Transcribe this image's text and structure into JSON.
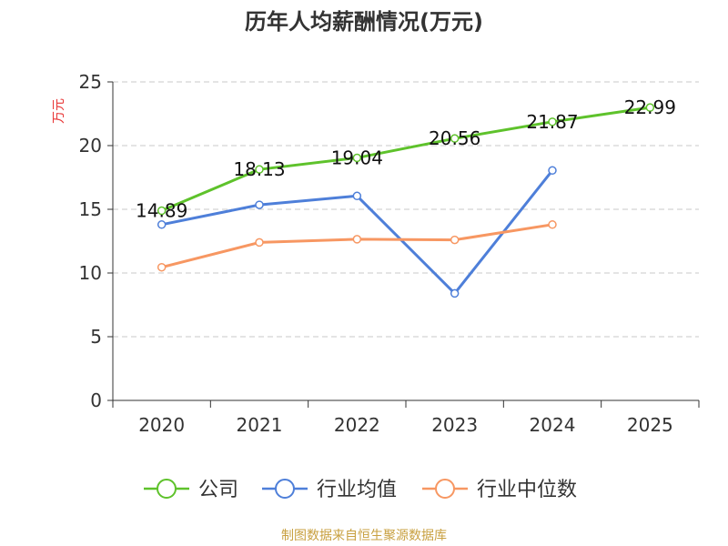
{
  "chart_data": {
    "type": "line",
    "title": "历年人均薪酬情况(万元)",
    "ylabel": "万元",
    "xlabel": "",
    "categories": [
      "2020",
      "2021",
      "2022",
      "2023",
      "2024",
      "2025"
    ],
    "ylim": [
      0,
      25
    ],
    "yticks": [
      0,
      5,
      10,
      15,
      20,
      25
    ],
    "grid": true,
    "legend_position": "bottom",
    "series": [
      {
        "name": "公司",
        "color": "#5ec22b",
        "values": [
          14.89,
          18.13,
          19.04,
          20.56,
          21.87,
          22.99
        ],
        "labels": [
          "14.89",
          "18.13",
          "19.04",
          "20.56",
          "21.87",
          "22.99"
        ]
      },
      {
        "name": "行业均值",
        "color": "#4e7fd9",
        "values": [
          13.8,
          15.35,
          16.05,
          8.4,
          18.05,
          null
        ]
      },
      {
        "name": "行业中位数",
        "color": "#f79762",
        "values": [
          10.45,
          12.4,
          12.65,
          12.6,
          13.8,
          null
        ]
      }
    ]
  },
  "source": "制图数据来自恒生聚源数据库",
  "colors": {
    "title": "#333333",
    "ylabel": "#e83535",
    "axis": "#333333",
    "grid": "#c8c8c8",
    "source": "#c8a040"
  }
}
